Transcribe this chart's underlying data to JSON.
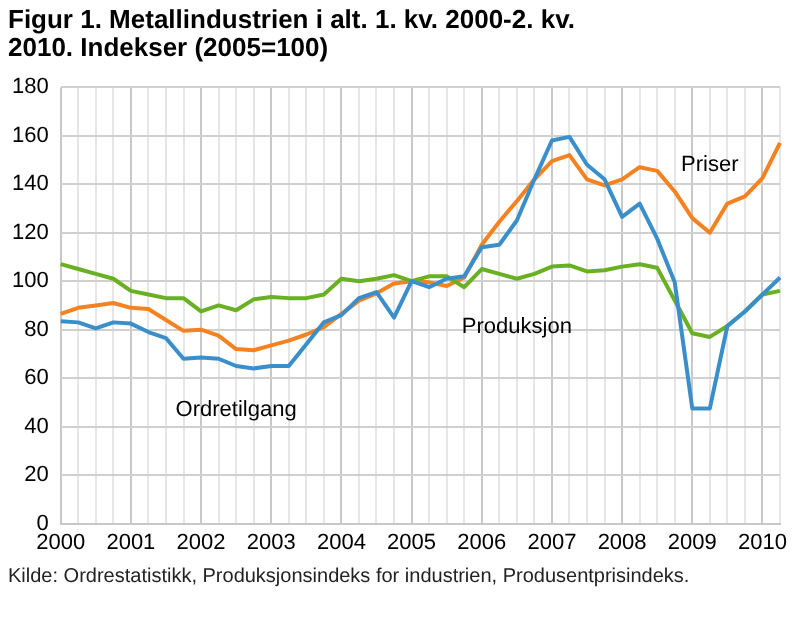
{
  "chart_data": {
    "type": "line",
    "title": "Figur 1. Metallindustrien i alt. 1. kv. 2000-2. kv. 2010. Indekser (2005=100)",
    "categories": [
      "2000",
      null,
      null,
      null,
      "2001",
      null,
      null,
      null,
      "2002",
      null,
      null,
      null,
      "2003",
      null,
      null,
      null,
      "2004",
      null,
      null,
      null,
      "2005",
      null,
      null,
      null,
      "2006",
      null,
      null,
      null,
      "2007",
      null,
      null,
      null,
      "2008",
      null,
      null,
      null,
      "2009",
      null,
      null,
      null,
      "2010",
      null
    ],
    "series": [
      {
        "name": "Ordretilgang",
        "color": "#3a8fcb",
        "values": [
          83.5,
          83,
          80.5,
          83,
          82.5,
          79,
          76.5,
          68,
          68.5,
          68,
          65,
          64,
          65,
          65,
          74,
          83,
          86,
          93,
          95.5,
          85,
          100,
          97.5,
          101,
          102,
          114,
          115,
          125,
          142,
          158,
          159.5,
          148,
          142,
          126.5,
          132,
          117.5,
          99.5,
          47.5,
          47.5,
          81.5,
          87.5,
          94.5,
          101.5
        ]
      },
      {
        "name": "Produksjon",
        "color": "#6ab023",
        "values": [
          107,
          105,
          103,
          101,
          96,
          94.5,
          93,
          93,
          87.5,
          90,
          88,
          92.5,
          93.5,
          93,
          93,
          94.5,
          101,
          100,
          101,
          102.5,
          100,
          102,
          102,
          97.5,
          105,
          103,
          101,
          103,
          106,
          106.5,
          104,
          104.5,
          106,
          107,
          105.5,
          92,
          78.5,
          77,
          81.5,
          87.5,
          94.5,
          96
        ]
      },
      {
        "name": "Priser",
        "color": "#f58220",
        "values": [
          86.5,
          89,
          90,
          91,
          89,
          88.5,
          84,
          79.5,
          80,
          77.5,
          72,
          71.5,
          73.5,
          75.5,
          78,
          81,
          86.5,
          92,
          95,
          99,
          100,
          99.5,
          98,
          101.5,
          115,
          124.5,
          133,
          142,
          149.5,
          152,
          142,
          139.5,
          142,
          147,
          145.5,
          137,
          126,
          120,
          132,
          135,
          142.5,
          157
        ]
      }
    ],
    "ylim": [
      0,
      180
    ],
    "yticks": [
      0,
      20,
      40,
      60,
      80,
      100,
      120,
      140,
      160,
      180
    ],
    "grid": true,
    "legend": false,
    "marker": "none",
    "line_style": "solid",
    "annotations": [
      "Kilde: Ordrestatistikk, Produksjonsindeks for industrien, Produsentprisindeks."
    ]
  }
}
